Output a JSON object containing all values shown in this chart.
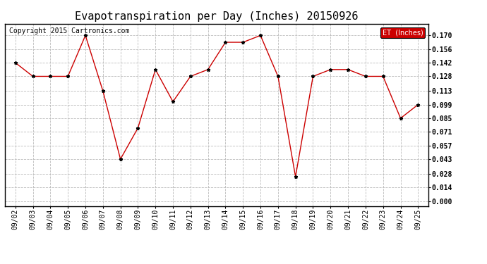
{
  "title": "Evapotranspiration per Day (Inches) 20150926",
  "copyright": "Copyright 2015 Cartronics.com",
  "dates": [
    "09/02",
    "09/03",
    "09/04",
    "09/05",
    "09/06",
    "09/07",
    "09/08",
    "09/09",
    "09/10",
    "09/11",
    "09/12",
    "09/13",
    "09/14",
    "09/15",
    "09/16",
    "09/17",
    "09/18",
    "09/19",
    "09/20",
    "09/21",
    "09/22",
    "09/23",
    "09/24",
    "09/25"
  ],
  "values": [
    0.142,
    0.128,
    0.128,
    0.128,
    0.17,
    0.113,
    0.043,
    0.075,
    0.135,
    0.102,
    0.128,
    0.135,
    0.163,
    0.163,
    0.17,
    0.128,
    0.025,
    0.128,
    0.135,
    0.135,
    0.128,
    0.128,
    0.085,
    0.099
  ],
  "line_color": "#cc0000",
  "marker_color": "#000000",
  "legend_label": "ET  (Inches)",
  "legend_bg": "#cc0000",
  "legend_text_color": "#ffffff",
  "ylabel_ticks": [
    0.0,
    0.014,
    0.028,
    0.043,
    0.057,
    0.071,
    0.085,
    0.099,
    0.113,
    0.128,
    0.142,
    0.156,
    0.17
  ],
  "ylim": [
    -0.005,
    0.182
  ],
  "background_color": "#ffffff",
  "grid_color": "#bbbbbb",
  "title_fontsize": 11,
  "tick_fontsize": 7,
  "copyright_fontsize": 7
}
